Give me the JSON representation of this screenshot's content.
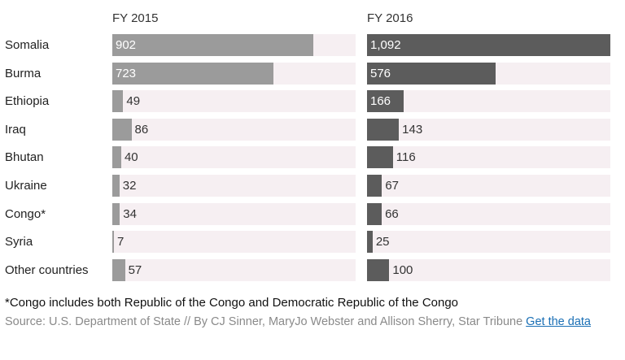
{
  "chart_data": {
    "type": "bar",
    "orientation": "horizontal",
    "categories": [
      "Somalia",
      "Burma",
      "Ethiopia",
      "Iraq",
      "Bhutan",
      "Ukraine",
      "Congo*",
      "Syria",
      "Other countries"
    ],
    "series": [
      {
        "name": "FY 2015",
        "values": [
          902,
          723,
          49,
          86,
          40,
          32,
          34,
          7,
          57
        ],
        "labels": [
          "902",
          "723",
          "49",
          "86",
          "40",
          "32",
          "34",
          "7",
          "57"
        ],
        "color": "#9b9b9b"
      },
      {
        "name": "FY 2016",
        "values": [
          1092,
          576,
          166,
          143,
          116,
          67,
          66,
          25,
          100
        ],
        "labels": [
          "1,092",
          "576",
          "166",
          "143",
          "116",
          "67",
          "66",
          "25",
          "100"
        ],
        "color": "#5c5c5c"
      }
    ],
    "xlim": [
      0,
      1092
    ],
    "track_color": "#f6eff2",
    "grid": false,
    "legend": "none"
  },
  "footnote": "*Congo includes both Republic of the Congo and Democratic Republic of the Congo",
  "source": {
    "text": "Source: U.S. Department of State // By CJ Sinner, MaryJo Webster and Allison Sherry, Star Tribune ",
    "link_label": "Get the data"
  }
}
